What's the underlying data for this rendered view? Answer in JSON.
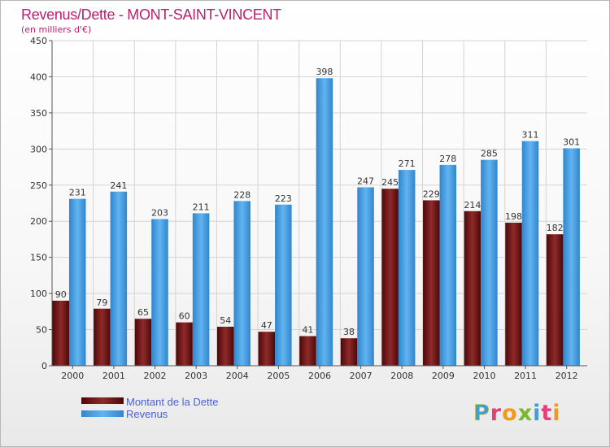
{
  "chart_data": {
    "type": "bar",
    "title": "Revenus/Dette - MONT-SAINT-VINCENT",
    "subtitle": "(en milliers d'€)",
    "xlabel": "",
    "ylabel": "",
    "ylim": [
      0,
      450
    ],
    "yticks": [
      0,
      50,
      100,
      150,
      200,
      250,
      300,
      350,
      400,
      450
    ],
    "grid": true,
    "categories": [
      "2000",
      "2001",
      "2002",
      "2003",
      "2004",
      "2005",
      "2006",
      "2007",
      "2008",
      "2009",
      "2010",
      "2011",
      "2012"
    ],
    "series": [
      {
        "name": "Montant de la Dette",
        "color": "#7a1414",
        "values": [
          90,
          79,
          65,
          60,
          54,
          47,
          41,
          38,
          245,
          229,
          214,
          198,
          182
        ]
      },
      {
        "name": "Revenus",
        "color": "#4ea6e6",
        "values": [
          231,
          241,
          203,
          211,
          228,
          223,
          398,
          247,
          271,
          278,
          285,
          311,
          301
        ]
      }
    ],
    "legend_position": "bottom-left"
  },
  "colors": {
    "title": "#b5226d",
    "legend_text": "#4a60d8",
    "axis_text": "#333333",
    "grid": "#d4d4d4",
    "dette_dark": "#4e0808",
    "dette_light": "#8e2a2a",
    "revenus_dark": "#2f86cf",
    "revenus_light": "#62b4ef"
  },
  "logo": {
    "text": "Proxiti"
  }
}
